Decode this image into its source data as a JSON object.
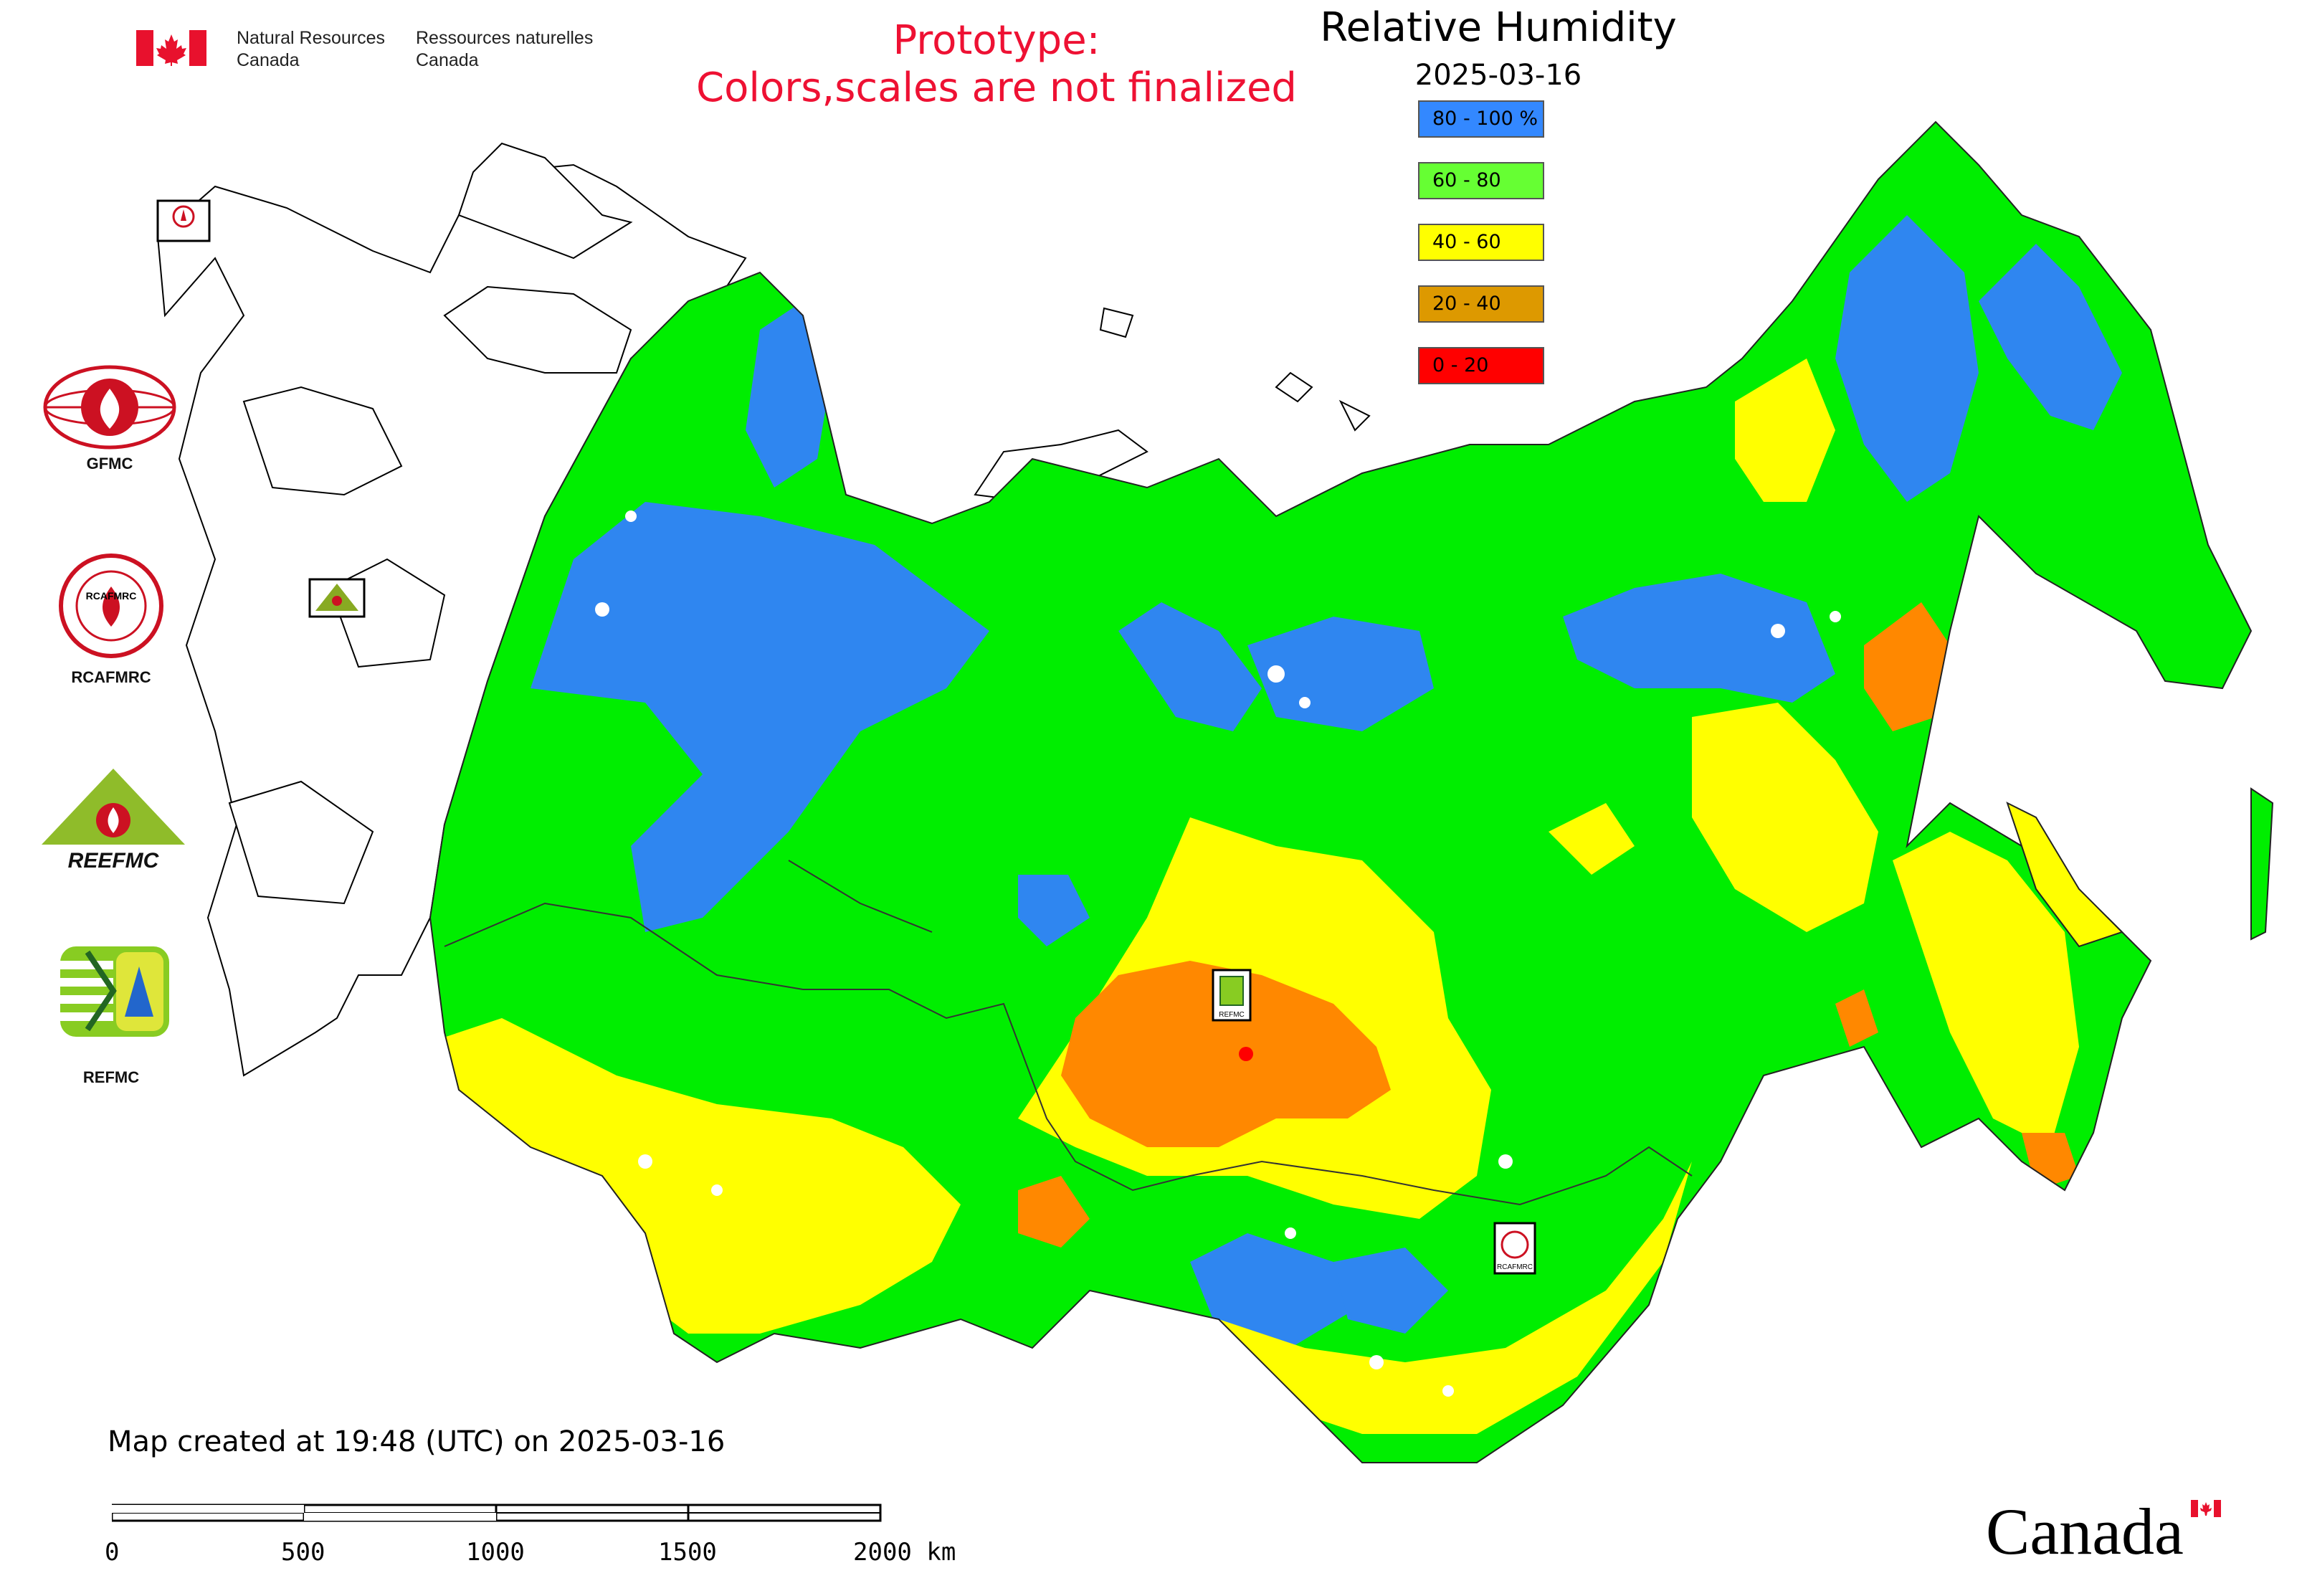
{
  "header": {
    "dept_en": [
      "Natural Resources",
      "Canada"
    ],
    "dept_fr": [
      "Ressources naturelles",
      "Canada"
    ],
    "prototype_line1": "Prototype:",
    "prototype_line2": "Colors,scales are not finalized"
  },
  "map": {
    "title": "Relative Humidity",
    "date": "2025-03-16",
    "legend": [
      {
        "label": "80 - 100 %",
        "color": "#3388ff"
      },
      {
        "label": "60 - 80",
        "color": "#66ff33"
      },
      {
        "label": "40 - 60",
        "color": "#ffff00"
      },
      {
        "label": "20 - 40",
        "color": "#dd9900"
      },
      {
        "label": "0 - 20",
        "color": "#ff0000"
      }
    ],
    "colors": {
      "very_humid": "#2f86f0",
      "humid": "#00ee00",
      "moderate": "#ffff00",
      "dry": "#ff8800",
      "very_dry": "#ff0000"
    }
  },
  "logos": {
    "gfmc": "GFMC",
    "rcafmrc": "RCAFMRC",
    "reefmc": "REEFMC",
    "refmc": "REFMC",
    "reefmc_text": "REEFMC"
  },
  "footer": {
    "map_created": "Map created at 19:48 (UTC) on 2025-03-16",
    "scale_labels": [
      "0",
      "500",
      "1000",
      "1500",
      "2000 km"
    ],
    "wordmark": "Canada"
  }
}
